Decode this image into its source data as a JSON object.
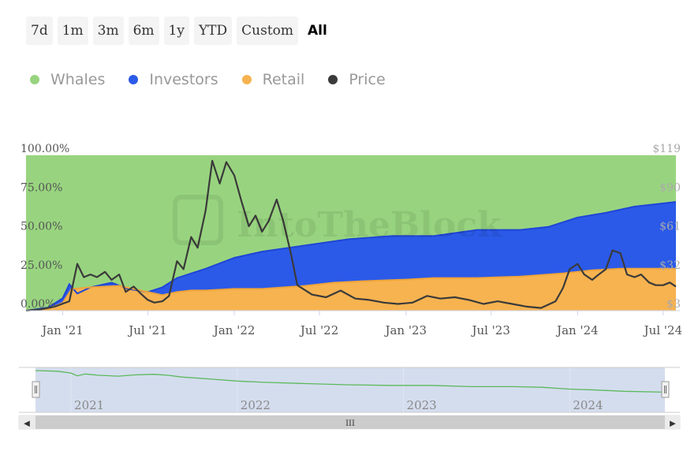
{
  "range_selector": {
    "buttons": [
      "7d",
      "1m",
      "3m",
      "6m",
      "1y",
      "YTD",
      "Custom",
      "All"
    ],
    "active": "All"
  },
  "colors": {
    "whales": "#98d47f",
    "investors": "#2b5ae8",
    "retail": "#f7b350",
    "price": "#3a3a3a",
    "navigator_fill": "#cfd9ec",
    "navigator_line": "#5cb85c"
  },
  "chart_data": {
    "type": "area",
    "stacking": "percent",
    "legend": [
      {
        "name": "Whales",
        "color": "#98d47f"
      },
      {
        "name": "Investors",
        "color": "#2b5ae8"
      },
      {
        "name": "Retail",
        "color": "#f7b350"
      },
      {
        "name": "Price",
        "color": "#3a3a3a"
      }
    ],
    "legend_placement": "top-left",
    "x_tick_labels": [
      "Jan '21",
      "Jul '21",
      "Jan '22",
      "Jul '22",
      "Jan '23",
      "Jul '23",
      "Jan '24",
      "Jul '24"
    ],
    "y_left_tick_labels": [
      "100.00%",
      "75.00%",
      "50.00%",
      "25.00%",
      "0.00%"
    ],
    "y_right_tick_labels": [
      "$119",
      "$90",
      "$61",
      "$32",
      "$3"
    ],
    "y_left_range": [
      0,
      100
    ],
    "y_right_range": [
      3,
      119
    ],
    "x_range": [
      "2020-10-15",
      "2024-07-28"
    ],
    "navigator_labels": [
      "2021",
      "2022",
      "2023",
      "2024"
    ],
    "series": [
      {
        "name": "Retail",
        "unit": "%",
        "points": [
          [
            "2020-10-15",
            0
          ],
          [
            "2020-12-01",
            1
          ],
          [
            "2021-01-01",
            5
          ],
          [
            "2021-01-20",
            14
          ],
          [
            "2021-03-01",
            15
          ],
          [
            "2021-05-01",
            16
          ],
          [
            "2021-07-01",
            12
          ],
          [
            "2021-08-01",
            10
          ],
          [
            "2021-09-01",
            12
          ],
          [
            "2021-10-01",
            13
          ],
          [
            "2021-11-01",
            13
          ],
          [
            "2022-01-01",
            14
          ],
          [
            "2022-03-01",
            14
          ],
          [
            "2022-06-01",
            16
          ],
          [
            "2022-08-01",
            18
          ],
          [
            "2022-10-01",
            19
          ],
          [
            "2023-01-01",
            20
          ],
          [
            "2023-03-01",
            21
          ],
          [
            "2023-06-01",
            21
          ],
          [
            "2023-09-01",
            22
          ],
          [
            "2023-12-01",
            24
          ],
          [
            "2024-02-01",
            26
          ],
          [
            "2024-04-01",
            27
          ],
          [
            "2024-06-01",
            27
          ],
          [
            "2024-07-28",
            27
          ]
        ]
      },
      {
        "name": "Investors",
        "unit": "%",
        "points": [
          [
            "2020-10-15",
            0
          ],
          [
            "2020-12-01",
            2
          ],
          [
            "2021-01-01",
            8
          ],
          [
            "2021-01-15",
            17
          ],
          [
            "2021-02-01",
            11
          ],
          [
            "2021-03-01",
            15
          ],
          [
            "2021-04-15",
            18
          ],
          [
            "2021-05-20",
            14
          ],
          [
            "2021-07-01",
            12
          ],
          [
            "2021-08-01",
            15
          ],
          [
            "2021-09-01",
            21
          ],
          [
            "2021-11-01",
            27
          ],
          [
            "2022-01-01",
            34
          ],
          [
            "2022-03-01",
            38
          ],
          [
            "2022-06-01",
            42
          ],
          [
            "2022-09-01",
            46
          ],
          [
            "2022-12-01",
            48
          ],
          [
            "2023-03-01",
            48
          ],
          [
            "2023-06-01",
            52
          ],
          [
            "2023-09-01",
            52
          ],
          [
            "2023-11-01",
            54
          ],
          [
            "2024-01-01",
            60
          ],
          [
            "2024-03-01",
            63
          ],
          [
            "2024-05-01",
            67
          ],
          [
            "2024-07-28",
            70
          ]
        ]
      },
      {
        "name": "Whales",
        "unit": "%",
        "points": [
          [
            "2020-10-15",
            100
          ],
          [
            "2024-07-28",
            100
          ]
        ]
      },
      {
        "name": "Price",
        "unit": "$",
        "points": [
          [
            "2020-10-15",
            3
          ],
          [
            "2020-11-15",
            4
          ],
          [
            "2020-12-15",
            6
          ],
          [
            "2021-01-15",
            10
          ],
          [
            "2021-02-01",
            38
          ],
          [
            "2021-02-15",
            28
          ],
          [
            "2021-03-01",
            30
          ],
          [
            "2021-03-15",
            28
          ],
          [
            "2021-04-01",
            32
          ],
          [
            "2021-04-15",
            26
          ],
          [
            "2021-05-01",
            30
          ],
          [
            "2021-05-15",
            17
          ],
          [
            "2021-06-01",
            21
          ],
          [
            "2021-06-15",
            16
          ],
          [
            "2021-07-01",
            11
          ],
          [
            "2021-07-15",
            9
          ],
          [
            "2021-08-01",
            10
          ],
          [
            "2021-08-15",
            14
          ],
          [
            "2021-09-01",
            40
          ],
          [
            "2021-09-15",
            34
          ],
          [
            "2021-10-01",
            58
          ],
          [
            "2021-10-15",
            50
          ],
          [
            "2021-11-01",
            78
          ],
          [
            "2021-11-15",
            115
          ],
          [
            "2021-12-01",
            98
          ],
          [
            "2021-12-15",
            114
          ],
          [
            "2022-01-01",
            104
          ],
          [
            "2022-01-15",
            86
          ],
          [
            "2022-02-01",
            66
          ],
          [
            "2022-02-15",
            74
          ],
          [
            "2022-03-01",
            62
          ],
          [
            "2022-03-15",
            70
          ],
          [
            "2022-04-01",
            86
          ],
          [
            "2022-04-15",
            70
          ],
          [
            "2022-05-01",
            46
          ],
          [
            "2022-05-15",
            22
          ],
          [
            "2022-06-15",
            15
          ],
          [
            "2022-07-15",
            13
          ],
          [
            "2022-08-15",
            18
          ],
          [
            "2022-09-15",
            12
          ],
          [
            "2022-10-15",
            11
          ],
          [
            "2022-11-15",
            9
          ],
          [
            "2022-12-15",
            8
          ],
          [
            "2023-01-15",
            9
          ],
          [
            "2023-02-15",
            14
          ],
          [
            "2023-03-15",
            12
          ],
          [
            "2023-04-15",
            13
          ],
          [
            "2023-05-15",
            11
          ],
          [
            "2023-06-15",
            8
          ],
          [
            "2023-07-15",
            10
          ],
          [
            "2023-08-15",
            8
          ],
          [
            "2023-09-15",
            6
          ],
          [
            "2023-10-15",
            5
          ],
          [
            "2023-11-15",
            10
          ],
          [
            "2023-12-01",
            20
          ],
          [
            "2023-12-15",
            34
          ],
          [
            "2024-01-01",
            38
          ],
          [
            "2024-01-15",
            30
          ],
          [
            "2024-02-01",
            26
          ],
          [
            "2024-02-15",
            30
          ],
          [
            "2024-03-01",
            34
          ],
          [
            "2024-03-15",
            48
          ],
          [
            "2024-04-01",
            46
          ],
          [
            "2024-04-15",
            30
          ],
          [
            "2024-05-01",
            28
          ],
          [
            "2024-05-15",
            30
          ],
          [
            "2024-06-01",
            24
          ],
          [
            "2024-06-15",
            22
          ],
          [
            "2024-07-01",
            22
          ],
          [
            "2024-07-15",
            24
          ],
          [
            "2024-07-28",
            21
          ]
        ]
      }
    ]
  },
  "navigator": {
    "scrollbar_center_glyph": "III",
    "left_arrow": "◀",
    "right_arrow": "▶",
    "handle_glyph": "II"
  }
}
